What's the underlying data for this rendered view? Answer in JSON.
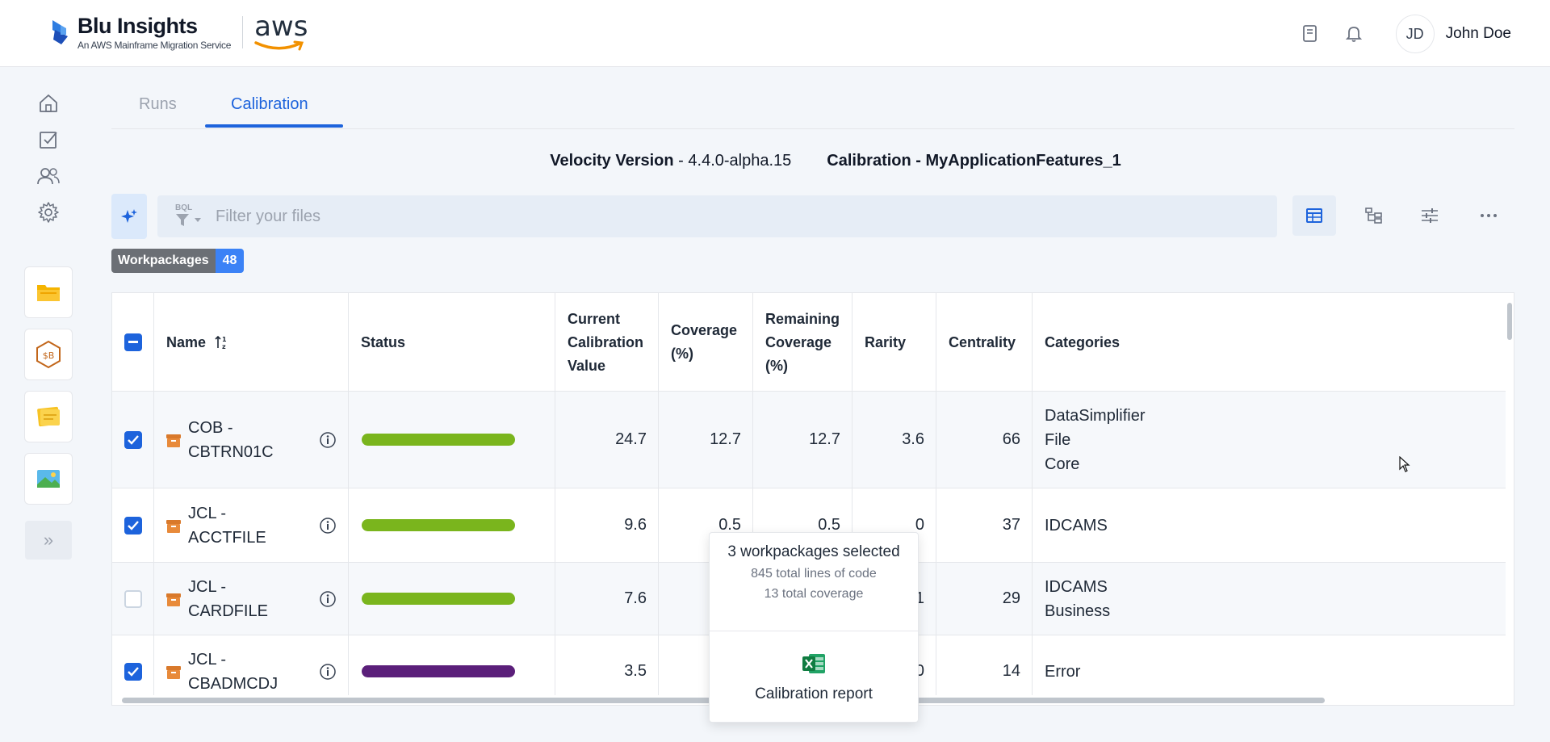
{
  "header": {
    "brand_title": "Blu Insights",
    "brand_subtitle": "An AWS Mainframe Migration Service",
    "partner_logo": "aws",
    "icons": [
      "book-icon",
      "bell-icon"
    ],
    "user_initials": "JD",
    "user_name": "John Doe"
  },
  "sidebar": {
    "nav_icons": [
      "home-icon",
      "tasks-icon",
      "users-icon",
      "gear-icon"
    ],
    "apps": [
      "folder-app-icon",
      "calibration-app-icon",
      "notes-app-icon",
      "image-app-icon"
    ],
    "expand_label": "»"
  },
  "tabs": [
    {
      "label": "Runs",
      "active": false
    },
    {
      "label": "Calibration",
      "active": true
    }
  ],
  "info": {
    "velocity_label": "Velocity Version",
    "velocity_value": " - 4.4.0-alpha.15",
    "calibration_label": "Calibration - MyApplicationFeatures_1"
  },
  "filter": {
    "bql_label": "BQL",
    "placeholder": "Filter your files"
  },
  "badge": {
    "label": "Workpackages",
    "count": "48"
  },
  "table": {
    "columns": [
      {
        "key": "name",
        "label": "Name"
      },
      {
        "key": "status",
        "label": "Status"
      },
      {
        "key": "ccv",
        "label": "Current Calibration Value"
      },
      {
        "key": "coverage",
        "label": "Coverage (%)"
      },
      {
        "key": "remaining",
        "label": "Remaining Coverage (%)"
      },
      {
        "key": "rarity",
        "label": "Rarity"
      },
      {
        "key": "centrality",
        "label": "Centrality"
      },
      {
        "key": "categories",
        "label": "Categories"
      }
    ],
    "rows": [
      {
        "checked": true,
        "name_type": "COB -",
        "name_id": "CBTRN01C",
        "status_color": "#7ab51d",
        "status_fill": 1.0,
        "ccv": "24.7",
        "coverage": "12.7",
        "remaining": "12.7",
        "rarity": "3.6",
        "centrality": "66",
        "categories": [
          "DataSimplifier",
          "File",
          "Core"
        ]
      },
      {
        "checked": true,
        "name_type": "JCL -",
        "name_id": "ACCTFILE",
        "status_color": "#7ab51d",
        "status_fill": 1.0,
        "ccv": "9.6",
        "coverage": "0.5",
        "remaining": "0.5",
        "rarity": "0",
        "centrality": "37",
        "categories": [
          "IDCAMS"
        ]
      },
      {
        "checked": false,
        "name_type": "JCL -",
        "name_id": "CARDFILE",
        "status_color": "#7ab51d",
        "status_fill": 1.0,
        "ccv": "7.6",
        "coverage": "",
        "remaining": "",
        "rarity": "1",
        "centrality": "29",
        "categories": [
          "IDCAMS",
          "Business"
        ]
      },
      {
        "checked": true,
        "name_type": "JCL -",
        "name_id": "CBADMCDJ",
        "status_color": "#5b1f7a",
        "status_fill": 1.0,
        "ccv": "3.5",
        "coverage": "",
        "remaining": "",
        "rarity": "0",
        "centrality": "14",
        "categories": [
          "Error"
        ]
      }
    ]
  },
  "popup": {
    "title": "3 workpackages selected",
    "lines": "845 total lines of code",
    "coverage": "13 total coverage",
    "report_label": "Calibration report"
  },
  "colors": {
    "accent": "#1d63dc",
    "status_green": "#7ab51d",
    "status_purple": "#5b1f7a"
  }
}
